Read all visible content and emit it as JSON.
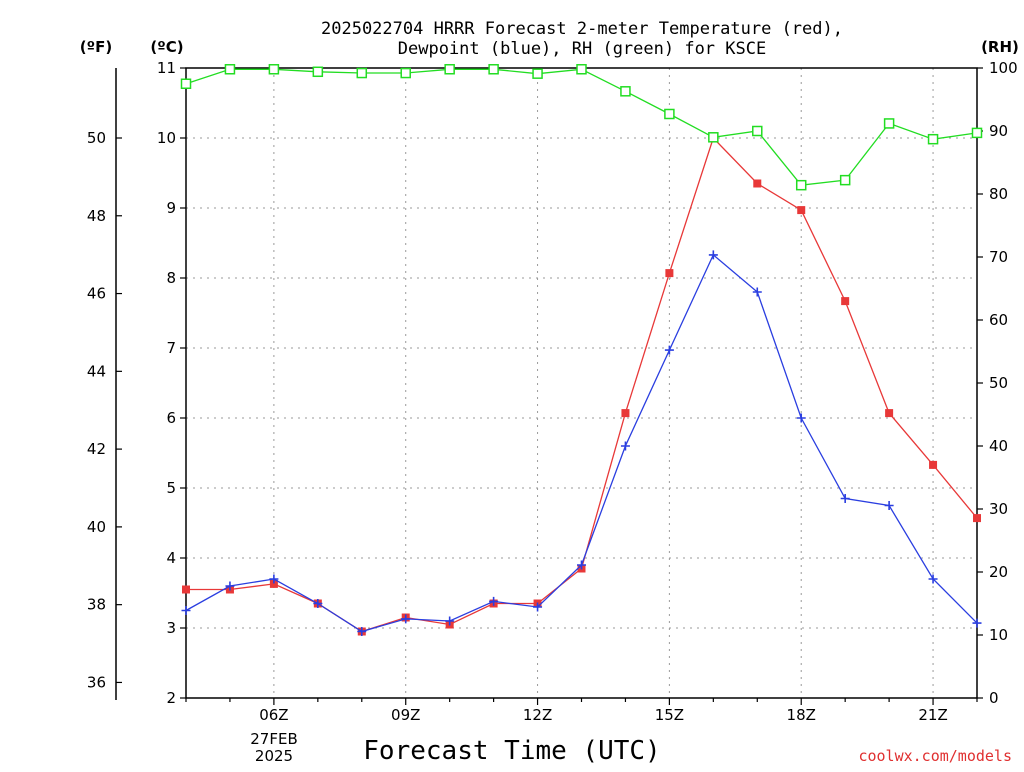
{
  "chart_data": {
    "type": "line",
    "title": "2025022704 HRRR Forecast 2-meter Temperature (red),",
    "subtitle": "Dewpoint (blue), RH (green) for KSCE",
    "left_outer_unit": "(ºF)",
    "left_unit": "(ºC)",
    "right_unit": "(RH)",
    "xlabel": "Forecast Time (UTC)",
    "credit": "coolwx.com/models",
    "date_line1": "27FEB",
    "date_line2": "2025",
    "x_hours": [
      4,
      5,
      6,
      7,
      8,
      9,
      10,
      11,
      12,
      13,
      14,
      15,
      16,
      17,
      18,
      19,
      20,
      21,
      22
    ],
    "x_range": [
      4,
      22
    ],
    "x_ticks": [
      {
        "hour": 6,
        "label": "06Z"
      },
      {
        "hour": 9,
        "label": "09Z"
      },
      {
        "hour": 12,
        "label": "12Z"
      },
      {
        "hour": 15,
        "label": "15Z"
      },
      {
        "hour": 18,
        "label": "18Z"
      },
      {
        "hour": 21,
        "label": "21Z"
      }
    ],
    "celsius_range": [
      2,
      11
    ],
    "celsius_ticks": [
      "2",
      "3",
      "4",
      "5",
      "6",
      "7",
      "8",
      "9",
      "10",
      "11"
    ],
    "fahrenheit_ticks": [
      "36",
      "38",
      "40",
      "42",
      "44",
      "46",
      "48",
      "50"
    ],
    "rh_range": [
      0,
      100
    ],
    "rh_ticks": [
      "0",
      "10",
      "20",
      "30",
      "40",
      "50",
      "60",
      "70",
      "80",
      "90",
      "100"
    ],
    "grid": true,
    "series": [
      {
        "name": "Temperature",
        "axis": "celsius",
        "color": "#e83838",
        "marker": "filled-square",
        "values": [
          3.55,
          3.55,
          3.63,
          3.35,
          2.95,
          3.15,
          3.05,
          3.35,
          3.35,
          3.85,
          6.07,
          8.07,
          10.0,
          9.35,
          8.97,
          7.67,
          6.07,
          5.33,
          4.57
        ]
      },
      {
        "name": "Dewpoint",
        "axis": "celsius",
        "color": "#2a3ee0",
        "marker": "plus",
        "values": [
          3.25,
          3.6,
          3.7,
          3.35,
          2.95,
          3.13,
          3.1,
          3.38,
          3.3,
          3.9,
          5.6,
          6.97,
          8.33,
          7.8,
          6.0,
          4.85,
          4.75,
          3.7,
          3.07
        ]
      },
      {
        "name": "RH",
        "axis": "rh",
        "color": "#22dd22",
        "marker": "open-square",
        "values": [
          97.5,
          99.8,
          99.8,
          99.4,
          99.2,
          99.2,
          99.8,
          99.8,
          99.1,
          99.8,
          96.3,
          92.7,
          89.0,
          90.0,
          81.4,
          82.2,
          91.2,
          88.7,
          89.7
        ]
      }
    ]
  }
}
